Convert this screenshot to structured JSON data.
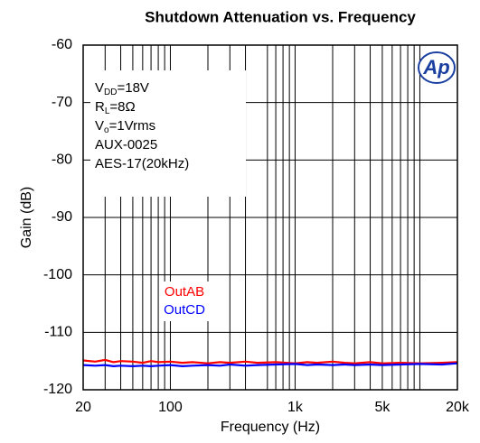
{
  "chart_data": {
    "type": "line",
    "title": "Shutdown Attenuation vs. Frequency",
    "xlabel": "Frequency (Hz)",
    "ylabel": "Gain (dB)",
    "logo": "Ap",
    "annotation": [
      [
        "V",
        "DD",
        "=18V"
      ],
      [
        "R",
        "L",
        "=8Ω"
      ],
      [
        "V",
        "o",
        "=1Vrms"
      ],
      [
        "AUX-0025"
      ],
      [
        "AES-17(20kHz)"
      ]
    ],
    "x": [
      20,
      25,
      30,
      35,
      40,
      50,
      60,
      70,
      80,
      100,
      125,
      150,
      200,
      250,
      300,
      400,
      500,
      700,
      1000,
      1250,
      1500,
      2000,
      2500,
      3000,
      4000,
      5000,
      7000,
      10000,
      15000,
      20000
    ],
    "series": [
      {
        "name": "OutAB",
        "color": "#ff0000",
        "values": [
          -114.9,
          -115.1,
          -114.8,
          -115.2,
          -115.0,
          -115.1,
          -115.3,
          -115.0,
          -115.2,
          -115.1,
          -115.3,
          -115.2,
          -115.4,
          -115.2,
          -115.3,
          -115.1,
          -115.3,
          -115.2,
          -115.4,
          -115.2,
          -115.3,
          -115.1,
          -115.3,
          -115.4,
          -115.2,
          -115.4,
          -115.3,
          -115.4,
          -115.3,
          -115.2
        ]
      },
      {
        "name": "OutCD",
        "color": "#0000ff",
        "values": [
          -115.7,
          -115.8,
          -115.7,
          -115.9,
          -115.8,
          -115.9,
          -115.8,
          -115.9,
          -115.8,
          -115.7,
          -115.9,
          -115.8,
          -115.7,
          -115.8,
          -115.6,
          -115.8,
          -115.7,
          -115.6,
          -115.5,
          -115.7,
          -115.6,
          -115.7,
          -115.6,
          -115.7,
          -115.6,
          -115.7,
          -115.6,
          -115.5,
          -115.6,
          -115.4
        ]
      }
    ],
    "xscale": "log",
    "xlim": [
      20,
      20000
    ],
    "ylim": [
      -120,
      -60
    ],
    "xticks": [
      20,
      100,
      {
        "value": 1000,
        "label": "1k"
      },
      {
        "value": 5000,
        "label": "5k"
      },
      {
        "value": 20000,
        "label": "20k"
      }
    ],
    "xminor": [
      30,
      40,
      50,
      60,
      70,
      80,
      90,
      200,
      300,
      400,
      600,
      700,
      800,
      900,
      2000,
      3000,
      4000,
      6000,
      7000,
      8000,
      9000,
      10000
    ],
    "yticks": [
      -120,
      -110,
      -100,
      -90,
      -80,
      -70,
      -60
    ],
    "grid": true
  }
}
